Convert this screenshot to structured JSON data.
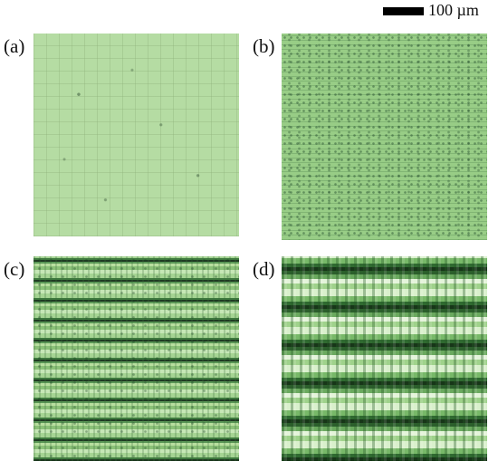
{
  "scale_bar": {
    "label": "100 µm"
  },
  "panels": [
    {
      "label": "(a)"
    },
    {
      "label": "(b)"
    },
    {
      "label": "(c)"
    },
    {
      "label": "(d)"
    }
  ]
}
